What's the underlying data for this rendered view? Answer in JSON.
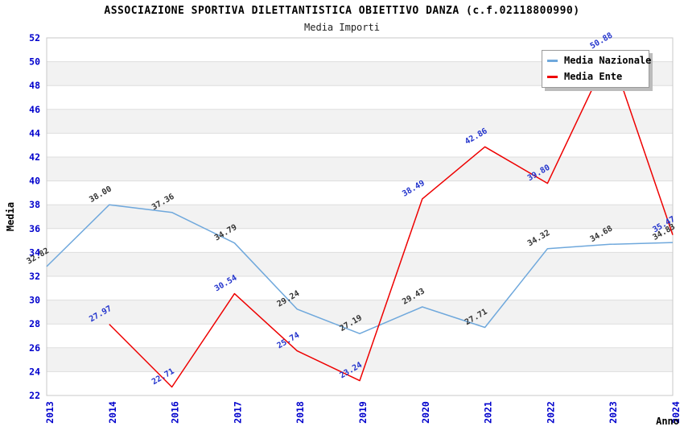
{
  "header": {
    "title": "ASSOCIAZIONE SPORTIVA DILETTANTISTICA OBIETTIVO DANZA (c.f.02118800990)",
    "subtitle": "Media Importi"
  },
  "legend": {
    "position": "top-right",
    "items": [
      {
        "label": "Media Nazionale",
        "color": "#6fa8dc"
      },
      {
        "label": "Media Ente",
        "color": "#ee0000"
      }
    ]
  },
  "colors": {
    "tick_text": "#0000cc",
    "axis_title_text": "#000000",
    "grid_line": "#dddddd",
    "band_fill": "#f2f2f2",
    "plot_border": "#c9c9c9",
    "nazionale_line": "#6fa8dc",
    "nazionale_value_label": "#333333",
    "ente_line": "#ee0000",
    "ente_value_label": "#2233cc"
  },
  "chart_data": {
    "type": "line",
    "title": "ASSOCIAZIONE SPORTIVA DILETTANTISTICA OBIETTIVO DANZA (c.f.02118800990)",
    "subtitle": "Media Importi",
    "xlabel": "Anno",
    "ylabel": "Media",
    "ylim": [
      22,
      52
    ],
    "ytick_step": 2,
    "grid": "horizontal",
    "alternating_bands": true,
    "legend_position": "top-right",
    "categories": [
      "2013",
      "2014",
      "2016",
      "2017",
      "2018",
      "2019",
      "2020",
      "2021",
      "2022",
      "2023",
      "2024"
    ],
    "series": [
      {
        "name": "Media Nazionale",
        "color": "#6fa8dc",
        "label_color": "#333333",
        "values": [
          32.82,
          38.0,
          37.36,
          34.79,
          29.24,
          27.19,
          29.43,
          27.71,
          34.32,
          34.68,
          34.83
        ]
      },
      {
        "name": "Media Ente",
        "color": "#ee0000",
        "label_color": "#2233cc",
        "values": [
          null,
          27.97,
          22.71,
          30.54,
          25.74,
          23.24,
          38.49,
          42.86,
          39.8,
          50.88,
          35.47
        ]
      }
    ]
  }
}
